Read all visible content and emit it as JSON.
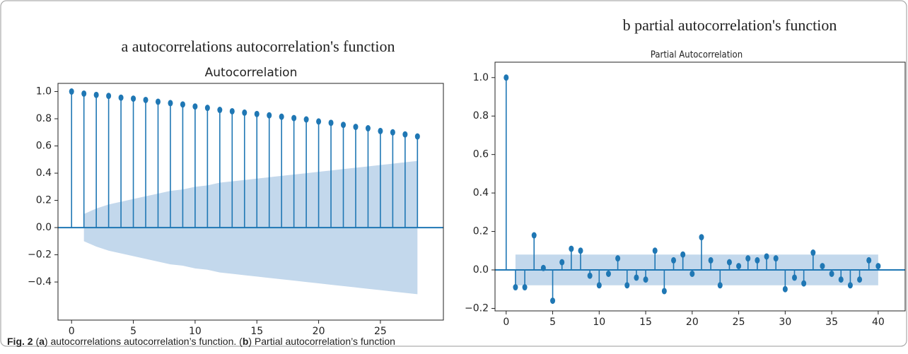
{
  "chart_data": [
    {
      "type": "stem",
      "supertitle": "a autocorrelations autocorrelation's function",
      "title": "Autocorrelation",
      "x": [
        0,
        1,
        2,
        3,
        4,
        5,
        6,
        7,
        8,
        9,
        10,
        11,
        12,
        13,
        14,
        15,
        16,
        17,
        18,
        19,
        20,
        21,
        22,
        23,
        24,
        25,
        26,
        27,
        28
      ],
      "values": [
        1.0,
        0.985,
        0.975,
        0.968,
        0.955,
        0.948,
        0.938,
        0.925,
        0.915,
        0.905,
        0.89,
        0.88,
        0.865,
        0.855,
        0.845,
        0.835,
        0.825,
        0.815,
        0.805,
        0.795,
        0.78,
        0.77,
        0.755,
        0.74,
        0.73,
        0.71,
        0.7,
        0.685,
        0.67
      ],
      "band": [
        null,
        0.1,
        0.14,
        0.17,
        0.19,
        0.21,
        0.23,
        0.25,
        0.27,
        0.28,
        0.3,
        0.31,
        0.33,
        0.34,
        0.35,
        0.36,
        0.37,
        0.38,
        0.39,
        0.4,
        0.41,
        0.42,
        0.43,
        0.44,
        0.45,
        0.46,
        0.47,
        0.48,
        0.49
      ],
      "color": "#1f77b4",
      "band_color": "#c3d8ec",
      "xlim": [
        -1.1,
        30.1
      ],
      "ylim": [
        -0.68,
        1.06
      ],
      "xticks": [
        0,
        5,
        10,
        15,
        20,
        25
      ],
      "yticks": [
        {
          "value": -0.4,
          "label": "−0.4"
        },
        {
          "value": -0.2,
          "label": "−0.2"
        },
        {
          "value": 0,
          "label": "0.0"
        },
        0.2,
        0.4,
        0.6,
        0.8,
        {
          "value": 1,
          "label": "1.0"
        }
      ]
    },
    {
      "type": "stem",
      "supertitle": "b partial autocorrelation's function",
      "title": "Partial Autocorrelation",
      "x": [
        0,
        1,
        2,
        3,
        4,
        5,
        6,
        7,
        8,
        9,
        10,
        11,
        12,
        13,
        14,
        15,
        16,
        17,
        18,
        19,
        20,
        21,
        22,
        23,
        24,
        25,
        26,
        27,
        28,
        29,
        30,
        31,
        32,
        33,
        34,
        35,
        36,
        37,
        38,
        39,
        40
      ],
      "values": [
        1.0,
        -0.09,
        -0.09,
        0.18,
        0.01,
        -0.16,
        0.04,
        0.11,
        0.1,
        -0.03,
        -0.08,
        -0.02,
        0.06,
        -0.08,
        -0.04,
        -0.05,
        0.1,
        -0.11,
        0.05,
        0.08,
        -0.02,
        0.17,
        0.05,
        -0.08,
        0.04,
        0.02,
        0.06,
        0.05,
        0.07,
        0.06,
        -0.1,
        -0.04,
        -0.07,
        0.09,
        0.02,
        -0.02,
        -0.05,
        -0.08,
        -0.05,
        0.05,
        0.02
      ],
      "band": [
        null,
        0.08,
        0.08,
        0.08,
        0.08,
        0.08,
        0.08,
        0.08,
        0.08,
        0.08,
        0.08,
        0.08,
        0.08,
        0.08,
        0.08,
        0.08,
        0.08,
        0.08,
        0.08,
        0.08,
        0.08,
        0.08,
        0.08,
        0.08,
        0.08,
        0.08,
        0.08,
        0.08,
        0.08,
        0.08,
        0.08,
        0.08,
        0.08,
        0.08,
        0.08,
        0.08,
        0.08,
        0.08,
        0.08,
        0.08,
        0.08
      ],
      "color": "#1f77b4",
      "band_color": "#c3d8ec",
      "xlim": [
        -1.2,
        42.9
      ],
      "ylim": [
        -0.213,
        1.08
      ],
      "xticks": [
        0,
        5,
        10,
        15,
        20,
        25,
        30,
        35,
        40
      ],
      "yticks": [
        {
          "value": -0.2,
          "label": "−0.2"
        },
        {
          "value": 0,
          "label": "0.0"
        },
        0.2,
        0.4,
        0.6,
        0.8,
        {
          "value": 1,
          "label": "1.0"
        }
      ]
    }
  ],
  "caption": {
    "label": "Fig. 2",
    "parts": [
      " (",
      "a",
      ") autocorrelations autocorrelation’s function. (",
      "b",
      ") Partial autocorrelation’s function"
    ]
  }
}
